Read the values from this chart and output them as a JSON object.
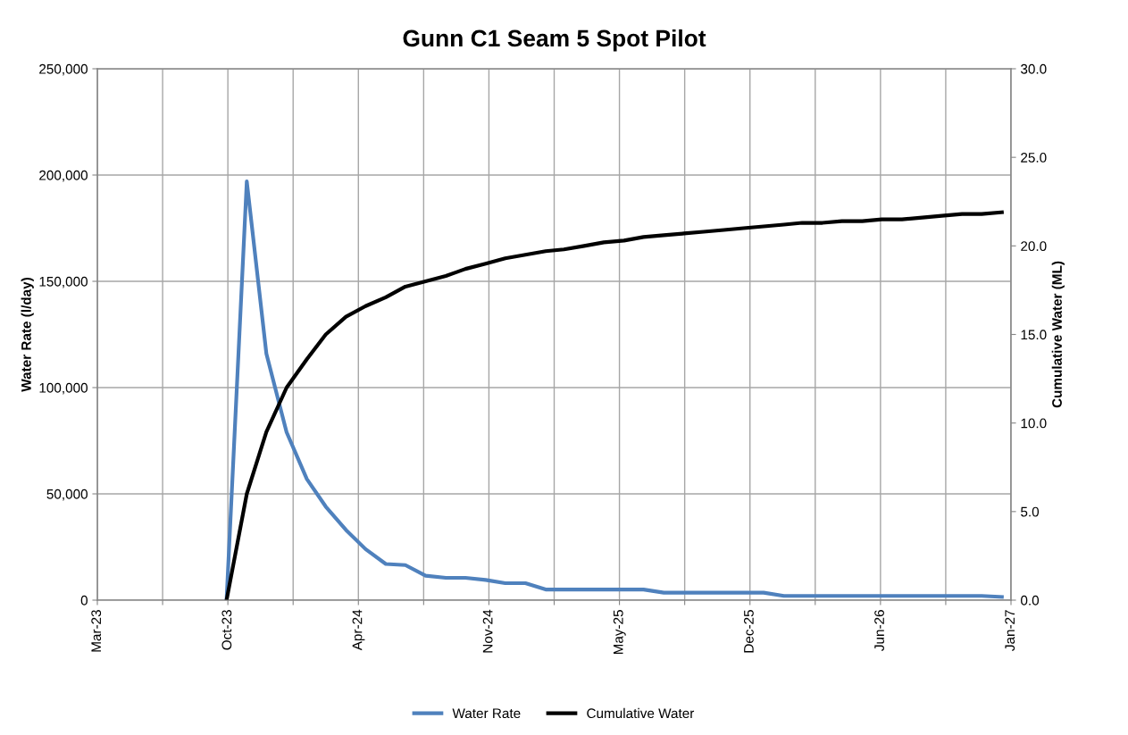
{
  "chart_data": {
    "type": "line",
    "title": "Gunn C1 Seam 5 Spot Pilot",
    "ylabel": "Water Rate (l/day)",
    "y2label": "Cumulative Water (ML)",
    "x": [
      "2023-10-01",
      "2023-11-01",
      "2023-12-01",
      "2024-01-01",
      "2024-02-01",
      "2024-03-01",
      "2024-04-01",
      "2024-05-01",
      "2024-06-01",
      "2024-07-01",
      "2024-08-01",
      "2024-09-01",
      "2024-10-01",
      "2024-11-01",
      "2024-12-01",
      "2025-01-01",
      "2025-02-01",
      "2025-03-01",
      "2025-04-01",
      "2025-05-01",
      "2025-06-01",
      "2025-07-01",
      "2025-08-01",
      "2025-09-01",
      "2025-10-01",
      "2025-11-01",
      "2025-12-01",
      "2026-01-01",
      "2026-02-01",
      "2026-03-01",
      "2026-04-01",
      "2026-05-01",
      "2026-06-01",
      "2026-07-01",
      "2026-08-01",
      "2026-09-01",
      "2026-10-01",
      "2026-11-01",
      "2026-12-01",
      "2027-01-01"
    ],
    "series": [
      {
        "name": "Water Rate",
        "color": "#4f81bd",
        "values": [
          0,
          197000,
          116000,
          79000,
          57000,
          44000,
          33000,
          24000,
          17000,
          16500,
          11500,
          10500,
          10500,
          9500,
          8000,
          8000,
          5000,
          5000,
          5000,
          5000,
          5000,
          5000,
          3500,
          3500,
          3500,
          3500,
          3500,
          3500,
          2000,
          2000,
          2000,
          2000,
          2000,
          2000,
          2000,
          2000,
          2000,
          2000,
          2000,
          1500
        ]
      },
      {
        "name": "Cumulative Water",
        "color": "#000000",
        "axis": "y2",
        "values": [
          0,
          6.0,
          9.5,
          12.0,
          13.6,
          15.0,
          16.0,
          16.6,
          17.1,
          17.7,
          18.0,
          18.3,
          18.7,
          19.0,
          19.3,
          19.5,
          19.7,
          19.8,
          20.0,
          20.2,
          20.3,
          20.5,
          20.6,
          20.7,
          20.8,
          20.9,
          21.0,
          21.1,
          21.2,
          21.3,
          21.3,
          21.4,
          21.4,
          21.5,
          21.5,
          21.6,
          21.7,
          21.8,
          21.8,
          21.9
        ]
      }
    ],
    "xlim": [
      "2023-03-17",
      "2027-01-15"
    ],
    "xticks": [
      {
        "value": "2023-03-17",
        "label": "Mar-23"
      },
      {
        "value": "2023-06-25",
        "label": null
      },
      {
        "value": "2023-10-03",
        "label": "Oct-23"
      },
      {
        "value": "2024-01-11",
        "label": null
      },
      {
        "value": "2024-04-20",
        "label": "Apr-24"
      },
      {
        "value": "2024-07-29",
        "label": null
      },
      {
        "value": "2024-11-06",
        "label": "Nov-24"
      },
      {
        "value": "2025-02-14",
        "label": null
      },
      {
        "value": "2025-05-25",
        "label": "May-25"
      },
      {
        "value": "2025-09-02",
        "label": null
      },
      {
        "value": "2025-12-11",
        "label": "Dec-25"
      },
      {
        "value": "2026-03-21",
        "label": null
      },
      {
        "value": "2026-06-29",
        "label": "Jun-26"
      },
      {
        "value": "2026-10-07",
        "label": null
      },
      {
        "value": "2027-01-15",
        "label": "Jan-27"
      }
    ],
    "ylim": [
      0,
      250000
    ],
    "yticks": [
      {
        "value": 0,
        "label": "0"
      },
      {
        "value": 50000,
        "label": "50,000"
      },
      {
        "value": 100000,
        "label": "100,000"
      },
      {
        "value": 150000,
        "label": "150,000"
      },
      {
        "value": 200000,
        "label": "200,000"
      },
      {
        "value": 250000,
        "label": "250,000"
      }
    ],
    "y2lim": [
      0,
      30
    ],
    "y2ticks": [
      {
        "value": 0,
        "label": "0.0"
      },
      {
        "value": 5,
        "label": "5.0"
      },
      {
        "value": 10,
        "label": "10.0"
      },
      {
        "value": 15,
        "label": "15.0"
      },
      {
        "value": 20,
        "label": "20.0"
      },
      {
        "value": 25,
        "label": "25.0"
      },
      {
        "value": 30,
        "label": "30.0"
      }
    ],
    "grid": true,
    "legend": "bottom",
    "line_style": "solid",
    "marker": "none"
  }
}
